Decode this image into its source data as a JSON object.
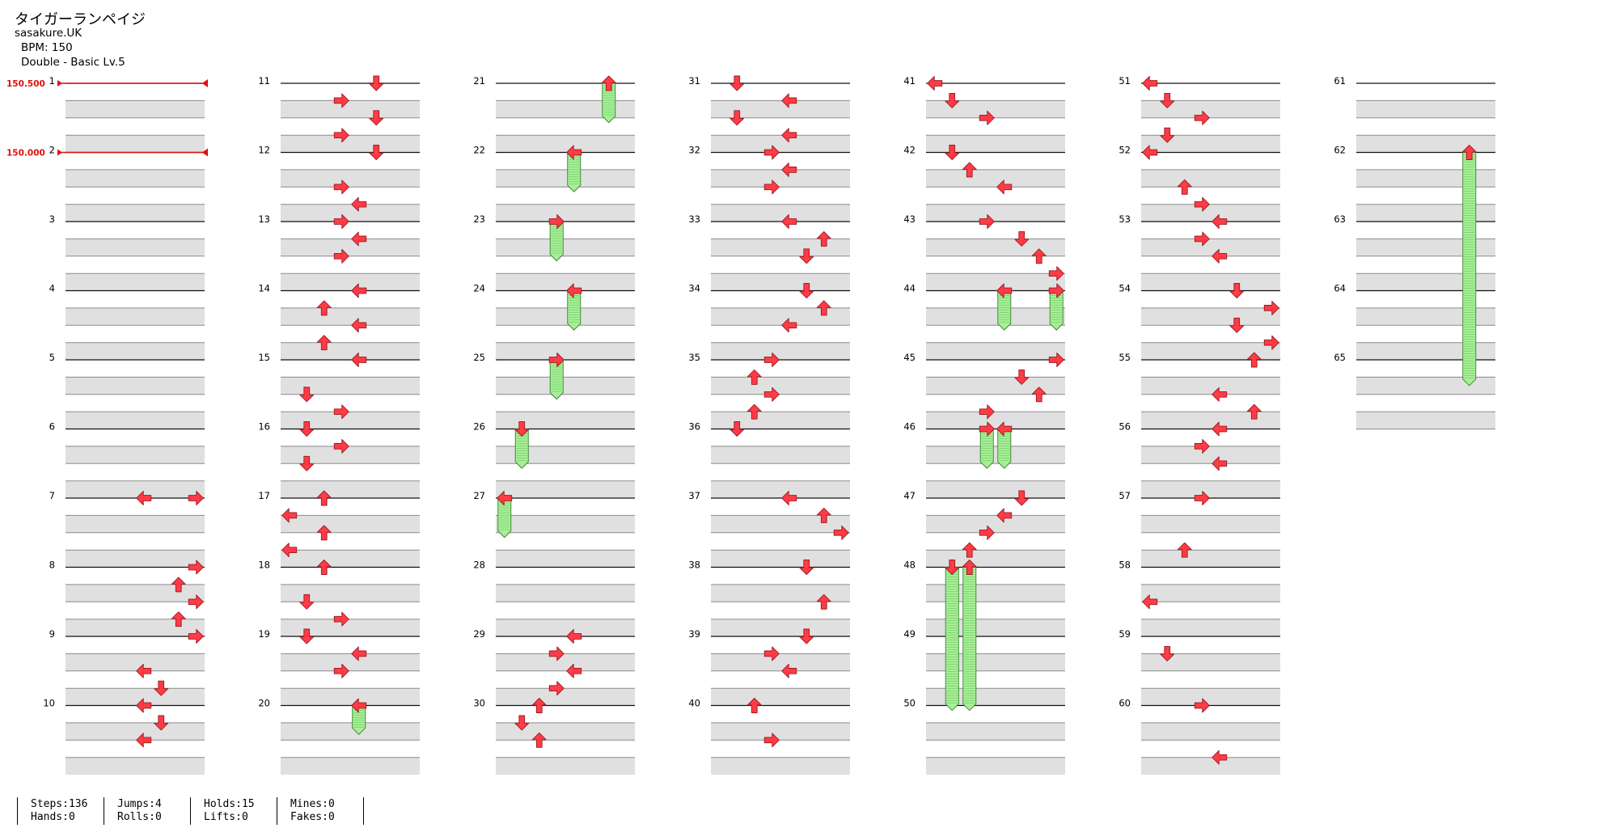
{
  "header": {
    "song_title": "タイガーランペイジ",
    "artist": "sasakure.UK",
    "bpm": "BPM: 150",
    "difficulty": "Double - Basic Lv.5"
  },
  "bpm_changes": [
    {
      "measure": 1,
      "label": "150.500"
    },
    {
      "measure": 2,
      "label": "150.000"
    }
  ],
  "chart": {
    "measures": 65,
    "measures_per_column": 10,
    "lane_count": 8,
    "notes": [
      {
        "m": 7,
        "b": 0,
        "l": 4,
        "d": "left"
      },
      {
        "m": 7,
        "b": 0,
        "l": 7,
        "d": "right"
      },
      {
        "m": 8,
        "b": 0,
        "l": 7,
        "d": "right"
      },
      {
        "m": 8,
        "b": 1,
        "l": 6,
        "d": "up"
      },
      {
        "m": 8,
        "b": 2,
        "l": 7,
        "d": "right"
      },
      {
        "m": 8,
        "b": 3,
        "l": 6,
        "d": "up"
      },
      {
        "m": 9,
        "b": 0,
        "l": 7,
        "d": "right"
      },
      {
        "m": 9,
        "b": 2,
        "l": 4,
        "d": "left"
      },
      {
        "m": 9,
        "b": 3,
        "l": 5,
        "d": "down"
      },
      {
        "m": 10,
        "b": 0,
        "l": 4,
        "d": "left"
      },
      {
        "m": 10,
        "b": 1,
        "l": 5,
        "d": "down"
      },
      {
        "m": 10,
        "b": 2,
        "l": 4,
        "d": "left"
      },
      {
        "m": 11,
        "b": 0,
        "l": 5,
        "d": "down"
      },
      {
        "m": 11,
        "b": 1,
        "l": 3,
        "d": "right"
      },
      {
        "m": 11,
        "b": 2,
        "l": 5,
        "d": "down"
      },
      {
        "m": 11,
        "b": 3,
        "l": 3,
        "d": "right"
      },
      {
        "m": 12,
        "b": 0,
        "l": 5,
        "d": "down"
      },
      {
        "m": 12,
        "b": 2,
        "l": 3,
        "d": "right"
      },
      {
        "m": 12,
        "b": 3,
        "l": 4,
        "d": "left"
      },
      {
        "m": 13,
        "b": 0,
        "l": 3,
        "d": "right"
      },
      {
        "m": 13,
        "b": 1,
        "l": 4,
        "d": "left"
      },
      {
        "m": 13,
        "b": 2,
        "l": 3,
        "d": "right"
      },
      {
        "m": 14,
        "b": 0,
        "l": 4,
        "d": "left"
      },
      {
        "m": 14,
        "b": 1,
        "l": 2,
        "d": "up"
      },
      {
        "m": 14,
        "b": 2,
        "l": 4,
        "d": "left"
      },
      {
        "m": 14,
        "b": 3,
        "l": 2,
        "d": "up"
      },
      {
        "m": 15,
        "b": 0,
        "l": 4,
        "d": "left"
      },
      {
        "m": 15,
        "b": 2,
        "l": 1,
        "d": "down"
      },
      {
        "m": 15,
        "b": 3,
        "l": 3,
        "d": "right"
      },
      {
        "m": 16,
        "b": 0,
        "l": 1,
        "d": "down"
      },
      {
        "m": 16,
        "b": 1,
        "l": 3,
        "d": "right"
      },
      {
        "m": 16,
        "b": 2,
        "l": 1,
        "d": "down"
      },
      {
        "m": 17,
        "b": 0,
        "l": 2,
        "d": "up"
      },
      {
        "m": 17,
        "b": 1,
        "l": 0,
        "d": "left"
      },
      {
        "m": 17,
        "b": 2,
        "l": 2,
        "d": "up"
      },
      {
        "m": 17,
        "b": 3,
        "l": 0,
        "d": "left"
      },
      {
        "m": 18,
        "b": 0,
        "l": 2,
        "d": "up"
      },
      {
        "m": 18,
        "b": 2,
        "l": 1,
        "d": "down"
      },
      {
        "m": 18,
        "b": 3,
        "l": 3,
        "d": "right"
      },
      {
        "m": 19,
        "b": 0,
        "l": 1,
        "d": "down"
      },
      {
        "m": 19,
        "b": 1,
        "l": 4,
        "d": "left"
      },
      {
        "m": 19,
        "b": 2,
        "l": 3,
        "d": "right"
      },
      {
        "m": 20,
        "b": 0,
        "l": 4,
        "d": "left",
        "hold": 1.3
      },
      {
        "m": 21,
        "b": 0,
        "l": 6,
        "d": "up",
        "hold": 1.9
      },
      {
        "m": 22,
        "b": 0,
        "l": 4,
        "d": "left",
        "hold": 1.9
      },
      {
        "m": 23,
        "b": 0,
        "l": 3,
        "d": "right",
        "hold": 1.9
      },
      {
        "m": 24,
        "b": 0,
        "l": 4,
        "d": "left",
        "hold": 1.9
      },
      {
        "m": 25,
        "b": 0,
        "l": 3,
        "d": "right",
        "hold": 1.9
      },
      {
        "m": 26,
        "b": 0,
        "l": 1,
        "d": "down",
        "hold": 1.9
      },
      {
        "m": 27,
        "b": 0,
        "l": 0,
        "d": "left",
        "hold": 1.9
      },
      {
        "m": 29,
        "b": 0,
        "l": 4,
        "d": "left"
      },
      {
        "m": 29,
        "b": 1,
        "l": 3,
        "d": "right"
      },
      {
        "m": 29,
        "b": 2,
        "l": 4,
        "d": "left"
      },
      {
        "m": 29,
        "b": 3,
        "l": 3,
        "d": "right"
      },
      {
        "m": 30,
        "b": 0,
        "l": 2,
        "d": "up"
      },
      {
        "m": 30,
        "b": 1,
        "l": 1,
        "d": "down"
      },
      {
        "m": 30,
        "b": 2,
        "l": 2,
        "d": "up"
      },
      {
        "m": 31,
        "b": 0,
        "l": 1,
        "d": "down"
      },
      {
        "m": 31,
        "b": 1,
        "l": 4,
        "d": "left"
      },
      {
        "m": 31,
        "b": 2,
        "l": 1,
        "d": "down"
      },
      {
        "m": 31,
        "b": 3,
        "l": 4,
        "d": "left"
      },
      {
        "m": 32,
        "b": 0,
        "l": 3,
        "d": "right"
      },
      {
        "m": 32,
        "b": 1,
        "l": 4,
        "d": "left"
      },
      {
        "m": 32,
        "b": 2,
        "l": 3,
        "d": "right"
      },
      {
        "m": 33,
        "b": 0,
        "l": 4,
        "d": "left"
      },
      {
        "m": 33,
        "b": 1,
        "l": 6,
        "d": "up"
      },
      {
        "m": 33,
        "b": 2,
        "l": 5,
        "d": "down"
      },
      {
        "m": 34,
        "b": 0,
        "l": 5,
        "d": "down"
      },
      {
        "m": 34,
        "b": 1,
        "l": 6,
        "d": "up"
      },
      {
        "m": 34,
        "b": 2,
        "l": 4,
        "d": "left"
      },
      {
        "m": 35,
        "b": 0,
        "l": 3,
        "d": "right"
      },
      {
        "m": 35,
        "b": 1,
        "l": 2,
        "d": "up"
      },
      {
        "m": 35,
        "b": 2,
        "l": 3,
        "d": "right"
      },
      {
        "m": 35,
        "b": 3,
        "l": 2,
        "d": "up"
      },
      {
        "m": 36,
        "b": 0,
        "l": 1,
        "d": "down"
      },
      {
        "m": 37,
        "b": 0,
        "l": 4,
        "d": "left"
      },
      {
        "m": 37,
        "b": 1,
        "l": 6,
        "d": "up"
      },
      {
        "m": 37,
        "b": 2,
        "l": 7,
        "d": "right"
      },
      {
        "m": 38,
        "b": 0,
        "l": 5,
        "d": "down"
      },
      {
        "m": 38,
        "b": 2,
        "l": 6,
        "d": "up"
      },
      {
        "m": 39,
        "b": 0,
        "l": 5,
        "d": "down"
      },
      {
        "m": 39,
        "b": 1,
        "l": 3,
        "d": "right"
      },
      {
        "m": 39,
        "b": 2,
        "l": 4,
        "d": "left"
      },
      {
        "m": 40,
        "b": 0,
        "l": 2,
        "d": "up"
      },
      {
        "m": 40,
        "b": 2,
        "l": 3,
        "d": "right"
      },
      {
        "m": 41,
        "b": 0,
        "l": 0,
        "d": "left"
      },
      {
        "m": 41,
        "b": 1,
        "l": 1,
        "d": "down"
      },
      {
        "m": 41,
        "b": 2,
        "l": 3,
        "d": "right"
      },
      {
        "m": 42,
        "b": 0,
        "l": 1,
        "d": "down"
      },
      {
        "m": 42,
        "b": 1,
        "l": 2,
        "d": "up"
      },
      {
        "m": 42,
        "b": 2,
        "l": 4,
        "d": "left"
      },
      {
        "m": 43,
        "b": 0,
        "l": 3,
        "d": "right"
      },
      {
        "m": 43,
        "b": 1,
        "l": 5,
        "d": "down"
      },
      {
        "m": 43,
        "b": 2,
        "l": 6,
        "d": "up"
      },
      {
        "m": 43,
        "b": 3,
        "l": 7,
        "d": "right"
      },
      {
        "m": 44,
        "b": 0,
        "l": 4,
        "d": "left",
        "hold": 1.9
      },
      {
        "m": 44,
        "b": 0,
        "l": 7,
        "d": "right",
        "hold": 1.9
      },
      {
        "m": 45,
        "b": 0,
        "l": 7,
        "d": "right"
      },
      {
        "m": 45,
        "b": 1,
        "l": 5,
        "d": "down"
      },
      {
        "m": 45,
        "b": 2,
        "l": 6,
        "d": "up"
      },
      {
        "m": 45,
        "b": 3,
        "l": 3,
        "d": "right"
      },
      {
        "m": 46,
        "b": 0,
        "l": 3,
        "d": "right",
        "hold": 1.9
      },
      {
        "m": 46,
        "b": 0,
        "l": 4,
        "d": "left",
        "hold": 1.9
      },
      {
        "m": 47,
        "b": 0,
        "l": 5,
        "d": "down"
      },
      {
        "m": 47,
        "b": 1,
        "l": 4,
        "d": "left"
      },
      {
        "m": 47,
        "b": 2,
        "l": 3,
        "d": "right"
      },
      {
        "m": 47,
        "b": 3,
        "l": 2,
        "d": "up"
      },
      {
        "m": 48,
        "b": 0,
        "l": 1,
        "d": "down",
        "hold": 7.9
      },
      {
        "m": 48,
        "b": 0,
        "l": 2,
        "d": "up",
        "hold": 7.9
      },
      {
        "m": 51,
        "b": 0,
        "l": 0,
        "d": "left"
      },
      {
        "m": 51,
        "b": 1,
        "l": 1,
        "d": "down"
      },
      {
        "m": 51,
        "b": 2,
        "l": 3,
        "d": "right"
      },
      {
        "m": 51,
        "b": 3,
        "l": 1,
        "d": "down"
      },
      {
        "m": 52,
        "b": 0,
        "l": 0,
        "d": "left"
      },
      {
        "m": 52,
        "b": 2,
        "l": 2,
        "d": "up"
      },
      {
        "m": 52,
        "b": 3,
        "l": 3,
        "d": "right"
      },
      {
        "m": 53,
        "b": 0,
        "l": 4,
        "d": "left"
      },
      {
        "m": 53,
        "b": 1,
        "l": 3,
        "d": "right"
      },
      {
        "m": 53,
        "b": 2,
        "l": 4,
        "d": "left"
      },
      {
        "m": 54,
        "b": 0,
        "l": 5,
        "d": "down"
      },
      {
        "m": 54,
        "b": 1,
        "l": 7,
        "d": "right"
      },
      {
        "m": 54,
        "b": 2,
        "l": 5,
        "d": "down"
      },
      {
        "m": 54,
        "b": 3,
        "l": 7,
        "d": "right"
      },
      {
        "m": 55,
        "b": 0,
        "l": 6,
        "d": "up"
      },
      {
        "m": 55,
        "b": 2,
        "l": 4,
        "d": "left"
      },
      {
        "m": 55,
        "b": 3,
        "l": 6,
        "d": "up"
      },
      {
        "m": 56,
        "b": 0,
        "l": 4,
        "d": "left"
      },
      {
        "m": 56,
        "b": 1,
        "l": 3,
        "d": "right"
      },
      {
        "m": 56,
        "b": 2,
        "l": 4,
        "d": "left"
      },
      {
        "m": 57,
        "b": 0,
        "l": 3,
        "d": "right"
      },
      {
        "m": 57,
        "b": 3,
        "l": 2,
        "d": "up"
      },
      {
        "m": 58,
        "b": 2,
        "l": 0,
        "d": "left"
      },
      {
        "m": 59,
        "b": 1,
        "l": 1,
        "d": "down"
      },
      {
        "m": 60,
        "b": 0,
        "l": 3,
        "d": "right"
      },
      {
        "m": 60,
        "b": 3,
        "l": 4,
        "d": "left"
      },
      {
        "m": 62,
        "b": 0,
        "l": 6,
        "d": "up",
        "hold": 13.1
      }
    ]
  },
  "stats": {
    "steps": "Steps:136",
    "jumps": "Jumps:4",
    "holds": "Holds:15",
    "mines": "Mines:0",
    "hands": "Hands:0",
    "rolls": "Rolls:0",
    "lifts": "Lifts:0",
    "fakes": "Fakes:0"
  },
  "colors": {
    "arrow_fill": "#ff3b46",
    "arrow_stroke": "#9c1a22",
    "hold_fill": "#a8ee98",
    "hold_stroke": "#3e8a36",
    "bpm_line": "#e01010",
    "row_gray": "#e0e0e0"
  }
}
